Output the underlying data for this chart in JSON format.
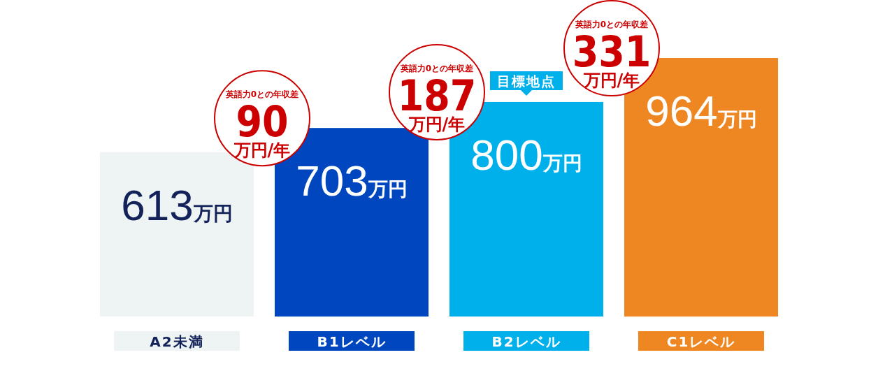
{
  "chart_data": {
    "type": "bar",
    "categories": [
      "A2未満",
      "B1レベル",
      "B2レベル",
      "C1レベル"
    ],
    "values": [
      613,
      703,
      800,
      964
    ],
    "colors": [
      "#eef3f4",
      "#0047bf",
      "#00b0eb",
      "#ee8722"
    ],
    "value_labels": [
      "613万円",
      "703万円",
      "800万円",
      "964万円"
    ],
    "annotations": [
      {
        "text": "英語力0との年収差\n90\n万円/年",
        "x": "B1レベル"
      },
      {
        "text": "英語力0との年収差\n187\n万円/年",
        "x": "B2レベル"
      },
      "目標地点",
      {
        "text": "英語力0との年収差\n331\n万円/年",
        "x": "C1レベル"
      }
    ]
  }
}
